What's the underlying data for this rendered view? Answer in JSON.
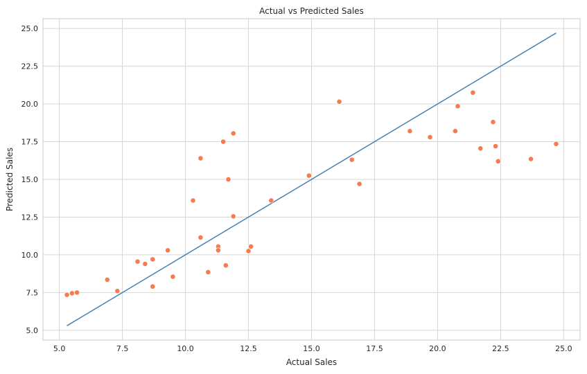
{
  "chart_data": {
    "type": "scatter",
    "title": "Actual vs Predicted Sales",
    "xlabel": "Actual Sales",
    "ylabel": "Predicted Sales",
    "xlim": [
      4.35,
      25.65
    ],
    "ylim": [
      4.35,
      25.65
    ],
    "xticks": [
      "5.0",
      "7.5",
      "10.0",
      "12.5",
      "15.0",
      "17.5",
      "20.0",
      "22.5",
      "25.0"
    ],
    "yticks": [
      "5.0",
      "7.5",
      "10.0",
      "12.5",
      "15.0",
      "17.5",
      "20.0",
      "22.5",
      "25.0"
    ],
    "grid": true,
    "colors": {
      "points": "#f57c4f",
      "line": "#4682b4",
      "grid": "#d6d6d6",
      "spine": "#c8c8c8"
    },
    "series": [
      {
        "type": "scatter",
        "points": [
          [
            5.3,
            7.35
          ],
          [
            5.5,
            7.45
          ],
          [
            5.7,
            7.5
          ],
          [
            6.9,
            8.35
          ],
          [
            7.3,
            7.6
          ],
          [
            8.1,
            9.55
          ],
          [
            8.4,
            9.4
          ],
          [
            8.7,
            9.7
          ],
          [
            8.7,
            7.9
          ],
          [
            9.3,
            10.3
          ],
          [
            9.5,
            8.55
          ],
          [
            10.3,
            13.6
          ],
          [
            10.6,
            16.4
          ],
          [
            10.6,
            11.15
          ],
          [
            10.9,
            8.85
          ],
          [
            11.3,
            10.55
          ],
          [
            11.3,
            10.3
          ],
          [
            11.5,
            17.5
          ],
          [
            11.6,
            9.3
          ],
          [
            11.7,
            15.0
          ],
          [
            11.9,
            18.05
          ],
          [
            11.9,
            12.55
          ],
          [
            12.5,
            10.25
          ],
          [
            12.6,
            10.55
          ],
          [
            13.4,
            13.6
          ],
          [
            14.9,
            15.25
          ],
          [
            16.1,
            20.15
          ],
          [
            16.6,
            16.3
          ],
          [
            16.9,
            14.7
          ],
          [
            18.9,
            18.2
          ],
          [
            19.7,
            17.8
          ],
          [
            20.7,
            18.2
          ],
          [
            20.8,
            19.85
          ],
          [
            21.4,
            20.75
          ],
          [
            21.7,
            17.05
          ],
          [
            22.2,
            18.8
          ],
          [
            22.3,
            17.2
          ],
          [
            22.4,
            16.2
          ],
          [
            23.7,
            16.35
          ],
          [
            24.7,
            17.35
          ]
        ]
      },
      {
        "type": "line",
        "points": [
          [
            5.3,
            5.3
          ],
          [
            24.7,
            24.7
          ]
        ]
      }
    ]
  }
}
